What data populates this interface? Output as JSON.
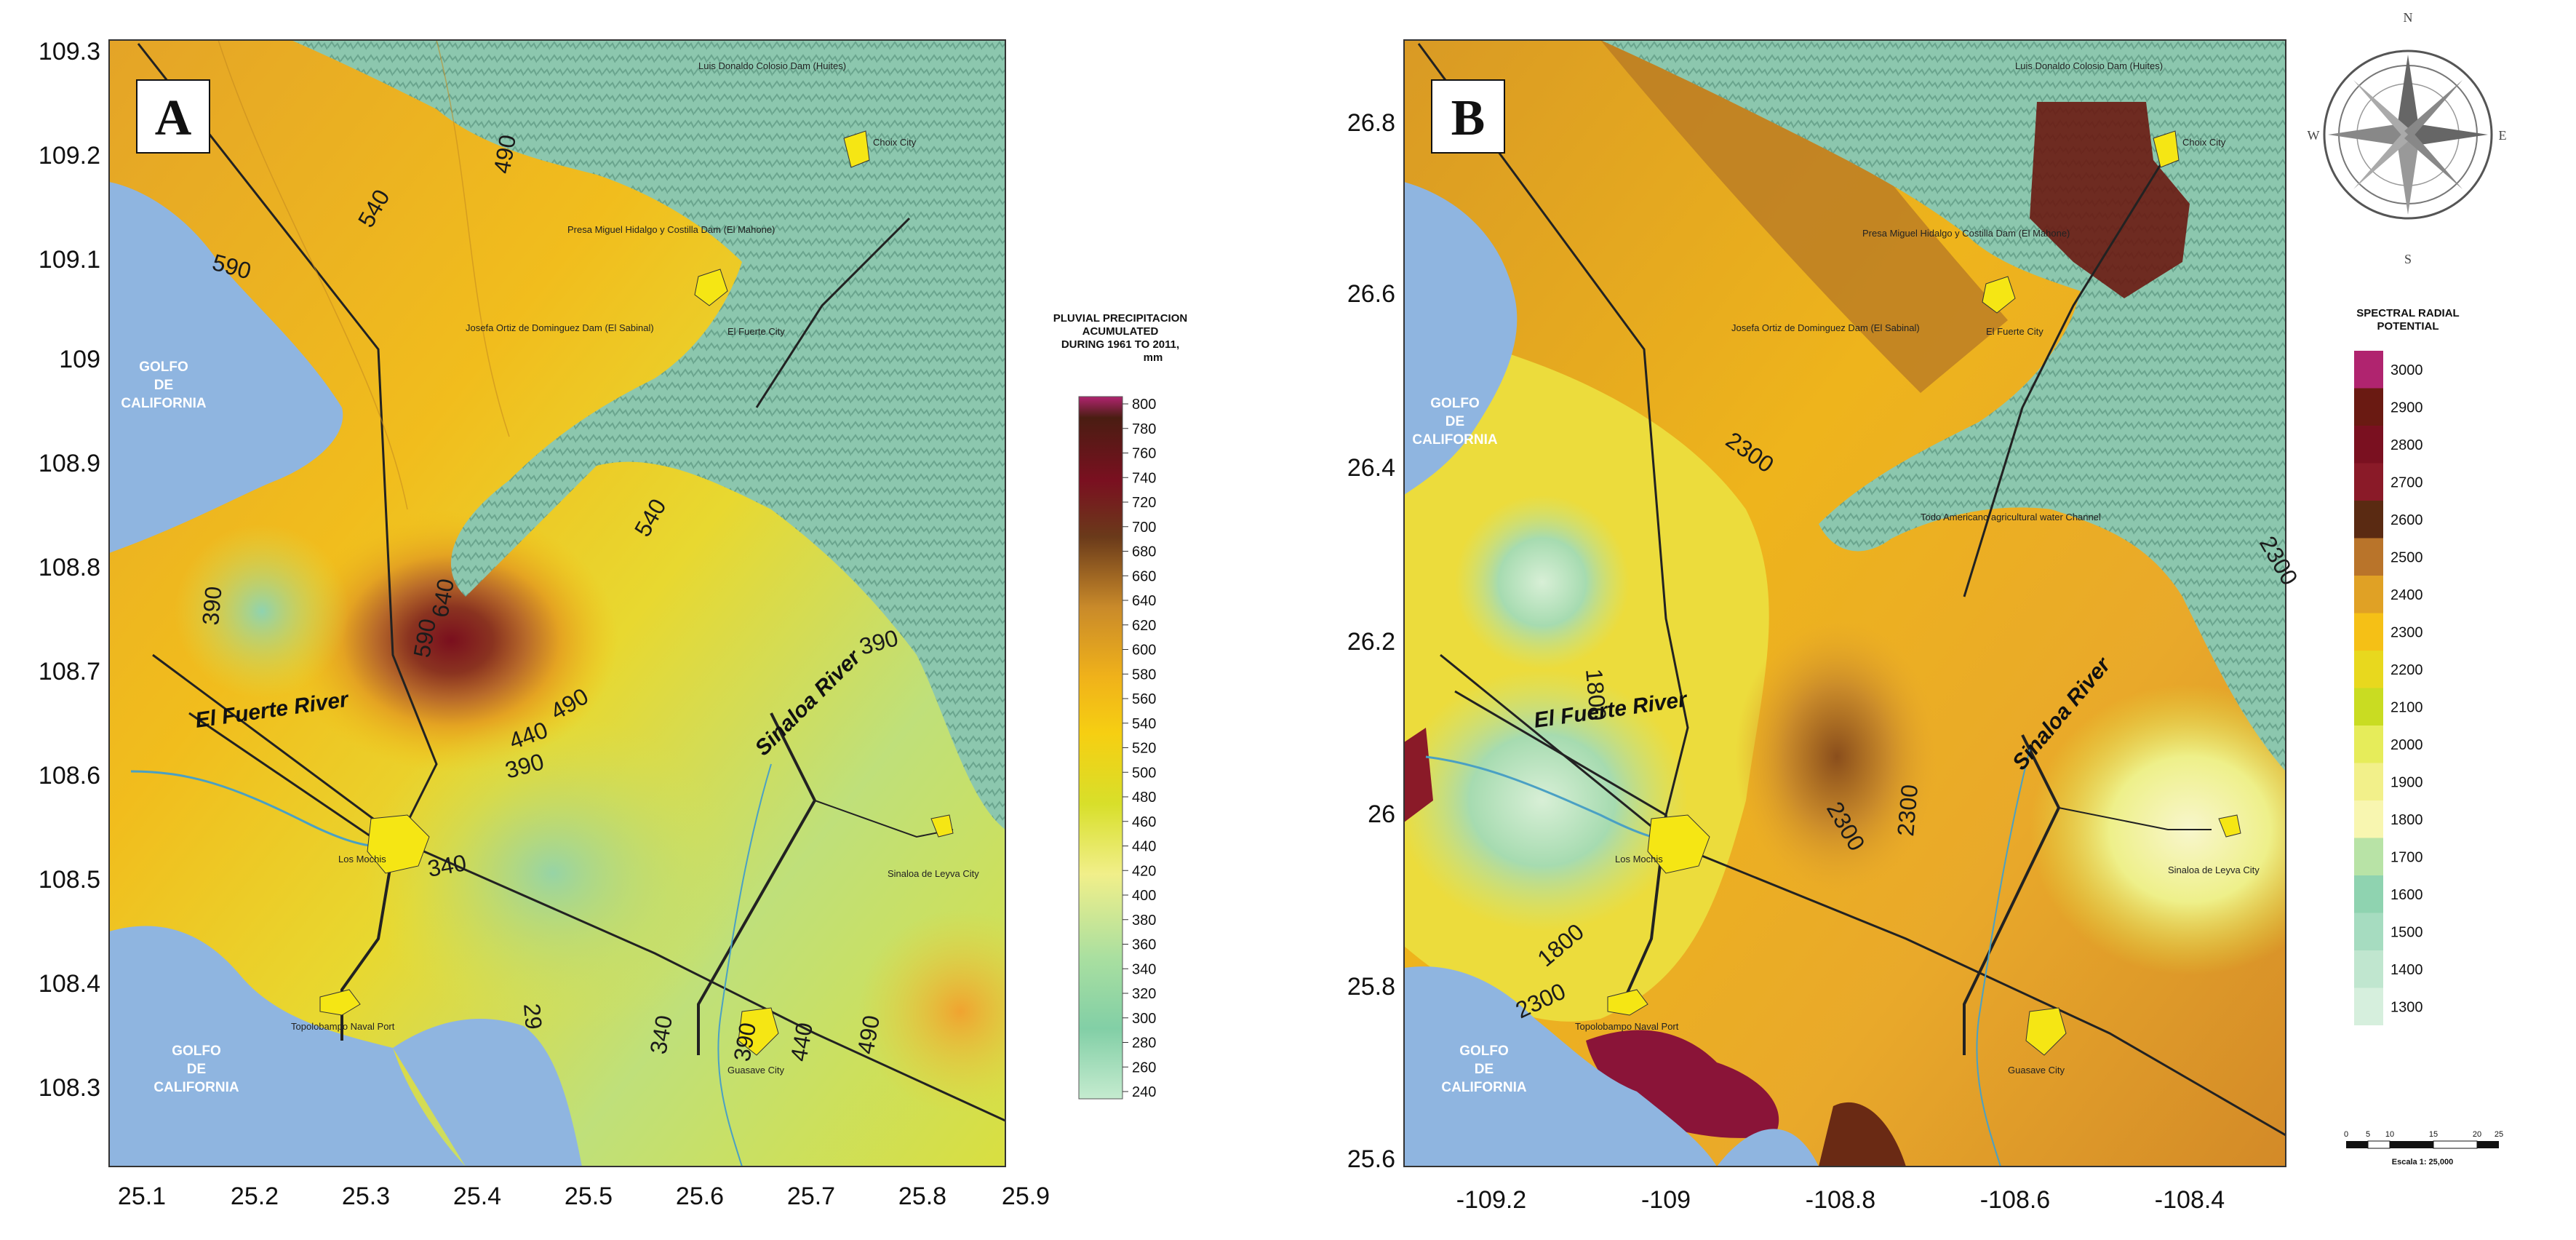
{
  "panel_a": {
    "letter": "A",
    "x_ticks": [
      "25.1",
      "25.2",
      "25.3",
      "25.4",
      "25.5",
      "25.6",
      "25.7",
      "25.8",
      "25.9"
    ],
    "y_ticks": [
      "109.3",
      "109.2",
      "109.1",
      "109",
      "108.9",
      "108.8",
      "108.7",
      "108.6",
      "108.5",
      "108.4",
      "108.3"
    ],
    "contour_labels": [
      "540",
      "490",
      "590",
      "540",
      "390",
      "640",
      "590",
      "440",
      "490",
      "390",
      "340",
      "390",
      "340",
      "390",
      "440",
      "490",
      "29"
    ],
    "rivers": [
      "El Fuerte River",
      "Sinaloa River"
    ],
    "places": {
      "choix": "Choix City",
      "dam_top": "Luis Donaldo Colosio Dam (Huites)",
      "dam_mid": "Presa Miguel Hidalgo y Costilla Dam (El Mahone)",
      "dam_left": "Josefa Ortiz de Dominguez Dam (El Sabinal)",
      "el_fuerte": "El Fuerte City",
      "los_mochis": "Los Mochis",
      "topolobampo": "Topolobampo Naval Port",
      "guasave": "Guasave City",
      "sinaloa_leyva": "Sinaloa de Leyva City"
    },
    "sea_labels": [
      "GOLFO",
      "DE",
      "CALIFORNIA"
    ],
    "legend": {
      "title_lines": [
        "PLUVIAL PRECIPITACION",
        "ACUMULATED",
        "DURING  1961 TO 2011,",
        "mm"
      ],
      "ticks": [
        "800",
        "780",
        "760",
        "740",
        "720",
        "700",
        "680",
        "660",
        "640",
        "620",
        "600",
        "580",
        "560",
        "540",
        "520",
        "500",
        "480",
        "460",
        "440",
        "420",
        "400",
        "380",
        "360",
        "340",
        "320",
        "300",
        "280",
        "260",
        "240"
      ]
    }
  },
  "panel_b": {
    "letter": "B",
    "x_ticks": [
      "-109.2",
      "-109",
      "-108.8",
      "-108.6",
      "-108.4"
    ],
    "y_ticks": [
      "26.8",
      "26.6",
      "26.4",
      "26.2",
      "26",
      "25.8",
      "25.6"
    ],
    "contour_labels": [
      "2300",
      "1800",
      "2300",
      "2300",
      "1800",
      "2300",
      "2300"
    ],
    "rivers": [
      "El Fuerte River",
      "Sinaloa River"
    ],
    "places": {
      "choix": "Choix City",
      "dam_top": "Luis Donaldo Colosio Dam (Huites)",
      "dam_mid": "Presa Miguel Hidalgo y Costilla Dam (El Mahone)",
      "dam_left": "Josefa Ortiz de Dominguez Dam (El Sabinal)",
      "el_fuerte": "El Fuerte City",
      "canal": "Todo Americano agricultural water Channel",
      "los_mochis": "Los Mochis",
      "topolobampo": "Topolobampo Naval Port",
      "guasave": "Guasave City",
      "sinaloa_leyva": "Sinaloa de Leyva City"
    },
    "sea_labels": [
      "GOLFO",
      "DE",
      "CALIFORNIA"
    ],
    "compass": {
      "n": "N",
      "s": "S",
      "e": "E",
      "w": "W"
    },
    "legend": {
      "title_lines": [
        "SPECTRAL RADIAL",
        "POTENTIAL"
      ],
      "ticks": [
        "3000",
        "2900",
        "2800",
        "2700",
        "2600",
        "2500",
        "2400",
        "2300",
        "2200",
        "2100",
        "2000",
        "1900",
        "1800",
        "1700",
        "1600",
        "1500",
        "1400",
        "1300"
      ]
    },
    "scale_bar": {
      "ticks": [
        "0",
        "5",
        "10",
        "15",
        "20",
        "25"
      ],
      "label": "Escala 1: 25,000"
    }
  },
  "colors": {
    "sea": "#8fb5e0",
    "mountain": "#8cc7ae",
    "city": "#f5e614",
    "road": "#222222",
    "river": "#4aa0c4"
  }
}
